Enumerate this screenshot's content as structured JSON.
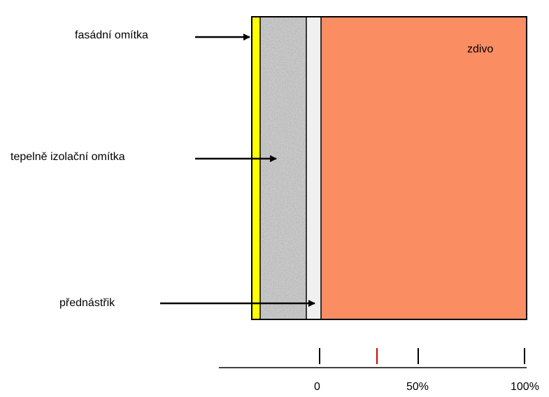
{
  "layers": {
    "facade_plaster": {
      "label": "fasádní omítka",
      "color": "#ffff00"
    },
    "insulating_plaster": {
      "label": "tepelně izolační omítka",
      "color": "#c8c8c8"
    },
    "prespray": {
      "label": "přednástřik",
      "color": "#f0f0f0"
    },
    "masonry": {
      "label": "zdivo",
      "color": "#fb8d63"
    }
  },
  "scale": {
    "ticks": [
      "0",
      "50%",
      "100%"
    ],
    "marker_color": "#cc0000",
    "marker_value_percent": 28
  }
}
